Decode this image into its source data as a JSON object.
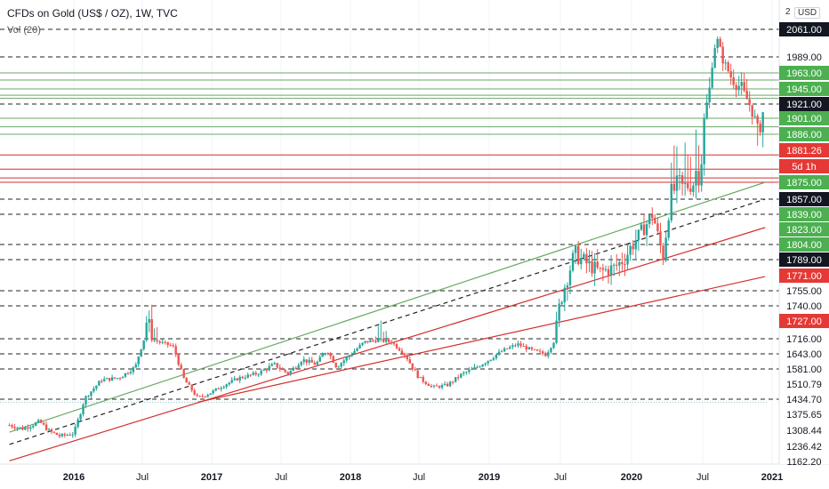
{
  "header": {
    "title": "CFDs on Gold (US$ / OZ), 1W, TVC",
    "indicator": "Vol (20)",
    "currency": "USD",
    "top_partial_label": "2"
  },
  "colors": {
    "up": "#26a69a",
    "down": "#ef5350",
    "green_line": "#6aaa64",
    "red_line": "#d32f2f",
    "black_dash": "#222222",
    "tag_green": "#4caf50",
    "tag_red": "#e53935",
    "tag_black": "#131722",
    "tag_white": "#ffffff",
    "teal_dotted": "#7fc4c4"
  },
  "chart_data": {
    "type": "candlestick",
    "y_min": 1162.2,
    "y_max": 2100,
    "y_scale_anchors": [
      [
        2061.0,
        33
      ],
      [
        1989.0,
        64
      ],
      [
        1963.0,
        82
      ],
      [
        1945.0,
        100
      ],
      [
        1921.0,
        117
      ],
      [
        1901.0,
        133
      ],
      [
        1886.0,
        151
      ],
      [
        1875.0,
        205
      ],
      [
        1857.0,
        224
      ],
      [
        1839.0,
        241
      ],
      [
        1823.0,
        258
      ],
      [
        1804.0,
        275
      ],
      [
        1789.0,
        292
      ],
      [
        1771.0,
        310
      ],
      [
        1755.0,
        327
      ],
      [
        1740.0,
        344
      ],
      [
        1727.0,
        361
      ],
      [
        1716.0,
        381
      ],
      [
        1643.0,
        398
      ],
      [
        1581.0,
        415
      ],
      [
        1510.79,
        432
      ],
      [
        1434.7,
        449
      ],
      [
        1375.65,
        466
      ],
      [
        1308.44,
        484
      ],
      [
        1236.42,
        502
      ],
      [
        1162.2,
        519
      ]
    ],
    "price_labels": [
      {
        "value": "2061.00",
        "style": "black"
      },
      {
        "value": "1989.00",
        "style": "white"
      },
      {
        "value": "1963.00",
        "style": "green"
      },
      {
        "value": "1945.00",
        "style": "green"
      },
      {
        "value": "1921.00",
        "style": "black"
      },
      {
        "value": "1901.00",
        "style": "green"
      },
      {
        "value": "1886.00",
        "style": "green"
      },
      {
        "value": "1881.26",
        "style": "red"
      },
      {
        "value": "5d 1h",
        "style": "red"
      },
      {
        "value": "1875.00",
        "style": "green"
      },
      {
        "value": "1857.00",
        "style": "black"
      },
      {
        "value": "1839.00",
        "style": "green"
      },
      {
        "value": "1823.00",
        "style": "green"
      },
      {
        "value": "1804.00",
        "style": "green"
      },
      {
        "value": "1789.00",
        "style": "black"
      },
      {
        "value": "1771.00",
        "style": "red"
      },
      {
        "value": "1755.00",
        "style": "white"
      },
      {
        "value": "1740.00",
        "style": "white"
      },
      {
        "value": "1727.00",
        "style": "red"
      },
      {
        "value": "1716.00",
        "style": "white"
      },
      {
        "value": "1643.00",
        "style": "white"
      },
      {
        "value": "1581.00",
        "style": "white"
      },
      {
        "value": "1510.79",
        "style": "white"
      },
      {
        "value": "1434.70",
        "style": "white"
      },
      {
        "value": "1375.65",
        "style": "white"
      },
      {
        "value": "1308.44",
        "style": "white"
      },
      {
        "value": "1236.42",
        "style": "white"
      },
      {
        "value": "1162.20",
        "style": "white"
      }
    ],
    "x_ticks": [
      "2016",
      "Jul",
      "2017",
      "Jul",
      "2018",
      "Jul",
      "2019",
      "Jul",
      "2020",
      "Jul",
      "2021"
    ],
    "x_tick_dates": [
      2016.0,
      2016.5,
      2017.0,
      2017.5,
      2018.0,
      2018.5,
      2019.0,
      2019.5,
      2020.0,
      2020.5,
      2021.0
    ],
    "x_range": [
      2015.53,
      2021.0
    ],
    "dashed_levels": [
      2061.0,
      1989.0,
      1921.0,
      1857.0,
      1839.0,
      1804.0,
      1789.0,
      1755.0,
      1740.0,
      1716.0,
      1643.0,
      1581.0,
      1434.7
    ],
    "green_levels": [
      1963.0,
      1955.0,
      1945.0,
      1935.0,
      1930.0,
      1901.0,
      1893.0,
      1886.0
    ],
    "red_levels": [
      1881.26,
      1878.0,
      1876.0,
      1875.0
    ],
    "teal_dotted_level": 1423.0,
    "trendlines": [
      {
        "style": "green",
        "from": [
          2015.53,
          1300.0
        ],
        "to": [
          2020.95,
          1875.0
        ]
      },
      {
        "style": "dashed",
        "from": [
          2015.53,
          1245.0
        ],
        "to": [
          2020.95,
          1857.0
        ]
      },
      {
        "style": "red",
        "from": [
          2015.53,
          1165.0
        ],
        "to": [
          2020.95,
          1825.0
        ]
      },
      {
        "style": "red",
        "from": [
          2016.9,
          1423.0
        ],
        "to": [
          2020.95,
          1770.0
        ]
      }
    ],
    "series_path": [
      [
        2015.53,
        1330
      ],
      [
        2015.63,
        1315
      ],
      [
        2015.75,
        1345
      ],
      [
        2015.82,
        1305
      ],
      [
        2015.9,
        1282
      ],
      [
        2016.0,
        1295
      ],
      [
        2016.08,
        1440
      ],
      [
        2016.2,
        1530
      ],
      [
        2016.33,
        1540
      ],
      [
        2016.45,
        1590
      ],
      [
        2016.52,
        1730
      ],
      [
        2016.62,
        1700
      ],
      [
        2016.72,
        1680
      ],
      [
        2016.8,
        1535
      ],
      [
        2016.9,
        1440
      ],
      [
        2017.0,
        1470
      ],
      [
        2017.1,
        1510
      ],
      [
        2017.2,
        1540
      ],
      [
        2017.33,
        1560
      ],
      [
        2017.45,
        1600
      ],
      [
        2017.55,
        1560
      ],
      [
        2017.65,
        1620
      ],
      [
        2017.75,
        1600
      ],
      [
        2017.83,
        1660
      ],
      [
        2017.9,
        1590
      ],
      [
        2018.0,
        1640
      ],
      [
        2018.1,
        1700
      ],
      [
        2018.2,
        1710
      ],
      [
        2018.3,
        1700
      ],
      [
        2018.4,
        1640
      ],
      [
        2018.5,
        1540
      ],
      [
        2018.6,
        1495
      ],
      [
        2018.7,
        1505
      ],
      [
        2018.8,
        1555
      ],
      [
        2018.9,
        1585
      ],
      [
        2019.0,
        1620
      ],
      [
        2019.1,
        1660
      ],
      [
        2019.2,
        1690
      ],
      [
        2019.3,
        1660
      ],
      [
        2019.4,
        1640
      ],
      [
        2019.45,
        1700
      ],
      [
        2019.5,
        1745
      ],
      [
        2019.55,
        1770
      ],
      [
        2019.6,
        1795
      ],
      [
        2019.68,
        1785
      ],
      [
        2019.78,
        1775
      ],
      [
        2019.88,
        1780
      ],
      [
        2019.95,
        1790
      ],
      [
        2020.05,
        1815
      ],
      [
        2020.15,
        1840
      ],
      [
        2020.22,
        1790
      ],
      [
        2020.28,
        1865
      ],
      [
        2020.35,
        1870
      ],
      [
        2020.42,
        1872
      ],
      [
        2020.5,
        1885
      ],
      [
        2020.55,
        1945
      ],
      [
        2020.6,
        2040
      ],
      [
        2020.65,
        1980
      ],
      [
        2020.7,
        1960
      ],
      [
        2020.78,
        1945
      ],
      [
        2020.85,
        1915
      ],
      [
        2020.9,
        1885
      ],
      [
        2020.95,
        1921
      ]
    ]
  }
}
